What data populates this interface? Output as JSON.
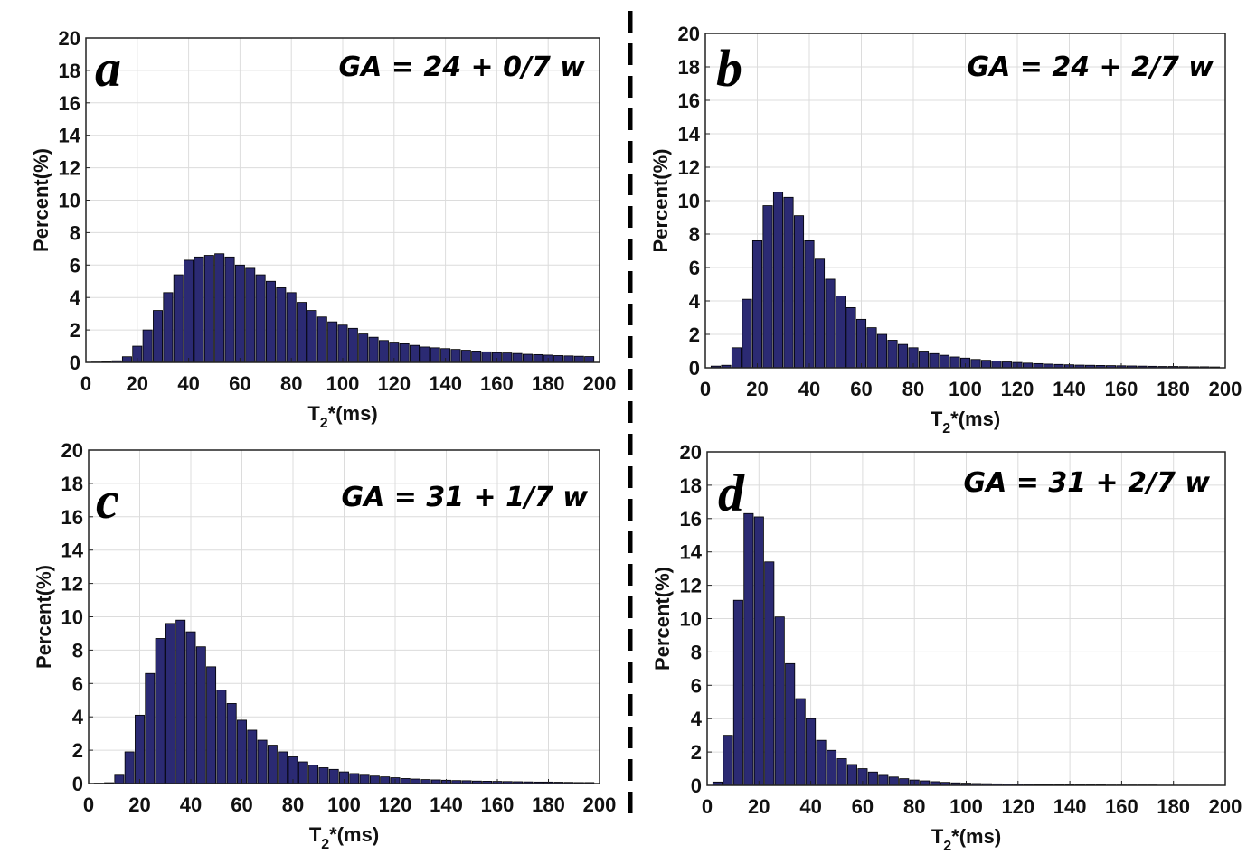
{
  "chart_data": [
    {
      "panel": "a",
      "type": "bar",
      "annotation": "GA = 24 + 0/7 w",
      "xlabel_main": "T",
      "xlabel_sub": "2",
      "xlabel_rest": "*(ms)",
      "ylabel": "Percent(%)",
      "xlim": [
        0,
        200
      ],
      "ylim": [
        0,
        20
      ],
      "xticks": [
        "0",
        "20",
        "40",
        "60",
        "80",
        "100",
        "120",
        "140",
        "160",
        "180",
        "200"
      ],
      "yticks": [
        "0",
        "2",
        "4",
        "6",
        "8",
        "10",
        "12",
        "14",
        "16",
        "18",
        "20"
      ],
      "bin_width": 4,
      "x": [
        4,
        8,
        12,
        16,
        20,
        24,
        28,
        32,
        36,
        40,
        44,
        48,
        52,
        56,
        60,
        64,
        68,
        72,
        76,
        80,
        84,
        88,
        92,
        96,
        100,
        104,
        108,
        112,
        116,
        120,
        124,
        128,
        132,
        136,
        140,
        144,
        148,
        152,
        156,
        160,
        164,
        168,
        172,
        176,
        180,
        184,
        188,
        192,
        196
      ],
      "values": [
        0.02,
        0.05,
        0.1,
        0.35,
        1.0,
        2.0,
        3.2,
        4.3,
        5.4,
        6.3,
        6.5,
        6.6,
        6.7,
        6.5,
        6.0,
        5.8,
        5.4,
        5.0,
        4.6,
        4.3,
        3.7,
        3.2,
        2.8,
        2.5,
        2.3,
        2.1,
        1.75,
        1.55,
        1.35,
        1.25,
        1.15,
        1.05,
        0.95,
        0.9,
        0.85,
        0.8,
        0.75,
        0.7,
        0.65,
        0.6,
        0.58,
        0.55,
        0.5,
        0.48,
        0.45,
        0.42,
        0.4,
        0.38,
        0.36
      ]
    },
    {
      "panel": "b",
      "type": "bar",
      "annotation": "GA = 24 + 2/7 w",
      "xlabel_main": "T",
      "xlabel_sub": "2",
      "xlabel_rest": "*(ms)",
      "ylabel": "Percent(%)",
      "xlim": [
        0,
        200
      ],
      "ylim": [
        0,
        20
      ],
      "xticks": [
        "0",
        "20",
        "40",
        "60",
        "80",
        "100",
        "120",
        "140",
        "160",
        "180",
        "200"
      ],
      "yticks": [
        "0",
        "2",
        "4",
        "6",
        "8",
        "10",
        "12",
        "14",
        "16",
        "18",
        "20"
      ],
      "bin_width": 4,
      "x": [
        4,
        8,
        12,
        16,
        20,
        24,
        28,
        32,
        36,
        40,
        44,
        48,
        52,
        56,
        60,
        64,
        68,
        72,
        76,
        80,
        84,
        88,
        92,
        96,
        100,
        104,
        108,
        112,
        116,
        120,
        124,
        128,
        132,
        136,
        140,
        144,
        148,
        152,
        156,
        160,
        164,
        168,
        172,
        176,
        180,
        184,
        188,
        192,
        196
      ],
      "values": [
        0.1,
        0.15,
        1.2,
        4.1,
        7.6,
        9.7,
        10.5,
        10.2,
        9.1,
        7.6,
        6.5,
        5.3,
        4.3,
        3.6,
        2.9,
        2.4,
        2.0,
        1.65,
        1.4,
        1.2,
        1.0,
        0.85,
        0.75,
        0.65,
        0.58,
        0.5,
        0.45,
        0.4,
        0.35,
        0.32,
        0.28,
        0.25,
        0.22,
        0.2,
        0.18,
        0.16,
        0.15,
        0.14,
        0.13,
        0.12,
        0.11,
        0.1,
        0.09,
        0.08,
        0.08,
        0.07,
        0.06,
        0.06,
        0.05
      ]
    },
    {
      "panel": "c",
      "type": "bar",
      "annotation": "GA = 31 + 1/7 w",
      "xlabel_main": "T",
      "xlabel_sub": "2",
      "xlabel_rest": "*(ms)",
      "ylabel": "Percent(%)",
      "xlim": [
        0,
        200
      ],
      "ylim": [
        0,
        20
      ],
      "xticks": [
        "0",
        "20",
        "40",
        "60",
        "80",
        "100",
        "120",
        "140",
        "160",
        "180",
        "200"
      ],
      "yticks": [
        "0",
        "2",
        "4",
        "6",
        "8",
        "10",
        "12",
        "14",
        "16",
        "18",
        "20"
      ],
      "bin_width": 4,
      "x": [
        4,
        8,
        12,
        16,
        20,
        24,
        28,
        32,
        36,
        40,
        44,
        48,
        52,
        56,
        60,
        64,
        68,
        72,
        76,
        80,
        84,
        88,
        92,
        96,
        100,
        104,
        108,
        112,
        116,
        120,
        124,
        128,
        132,
        136,
        140,
        144,
        148,
        152,
        156,
        160,
        164,
        168,
        172,
        176,
        180,
        184,
        188,
        192,
        196
      ],
      "values": [
        0.02,
        0.05,
        0.5,
        1.9,
        4.1,
        6.6,
        8.7,
        9.6,
        9.8,
        9.1,
        8.2,
        7.0,
        5.6,
        4.8,
        3.8,
        3.2,
        2.6,
        2.3,
        1.9,
        1.6,
        1.3,
        1.1,
        0.95,
        0.85,
        0.7,
        0.6,
        0.5,
        0.45,
        0.4,
        0.35,
        0.3,
        0.27,
        0.24,
        0.22,
        0.2,
        0.18,
        0.17,
        0.15,
        0.14,
        0.13,
        0.12,
        0.11,
        0.1,
        0.09,
        0.09,
        0.08,
        0.07,
        0.06,
        0.06
      ]
    },
    {
      "panel": "d",
      "type": "bar",
      "annotation": "GA = 31 + 2/7 w",
      "xlabel_main": "T",
      "xlabel_sub": "2",
      "xlabel_rest": "*(ms)",
      "ylabel": "Percent(%)",
      "xlim": [
        0,
        200
      ],
      "ylim": [
        0,
        20
      ],
      "xticks": [
        "0",
        "20",
        "40",
        "60",
        "80",
        "100",
        "120",
        "140",
        "160",
        "180",
        "200"
      ],
      "yticks": [
        "0",
        "2",
        "4",
        "6",
        "8",
        "10",
        "12",
        "14",
        "16",
        "18",
        "20"
      ],
      "bin_width": 4,
      "x": [
        4,
        8,
        12,
        16,
        20,
        24,
        28,
        32,
        36,
        40,
        44,
        48,
        52,
        56,
        60,
        64,
        68,
        72,
        76,
        80,
        84,
        88,
        92,
        96,
        100,
        104,
        108,
        112,
        116,
        120,
        124,
        128,
        132,
        136,
        140,
        144,
        148,
        152,
        156,
        160,
        164,
        168,
        172,
        176,
        180,
        184,
        188,
        192,
        196
      ],
      "values": [
        0.2,
        3.0,
        11.1,
        16.3,
        16.1,
        13.4,
        10.1,
        7.3,
        5.2,
        4.0,
        2.7,
        2.1,
        1.6,
        1.25,
        1.0,
        0.8,
        0.6,
        0.5,
        0.4,
        0.32,
        0.27,
        0.22,
        0.18,
        0.15,
        0.13,
        0.11,
        0.1,
        0.09,
        0.08,
        0.07,
        0.06,
        0.05,
        0.05,
        0.04,
        0.04,
        0.03,
        0.03,
        0.03,
        0.02,
        0.02,
        0.02,
        0.02,
        0.02,
        0.01,
        0.01,
        0.01,
        0.01,
        0.01,
        0.01
      ]
    }
  ]
}
